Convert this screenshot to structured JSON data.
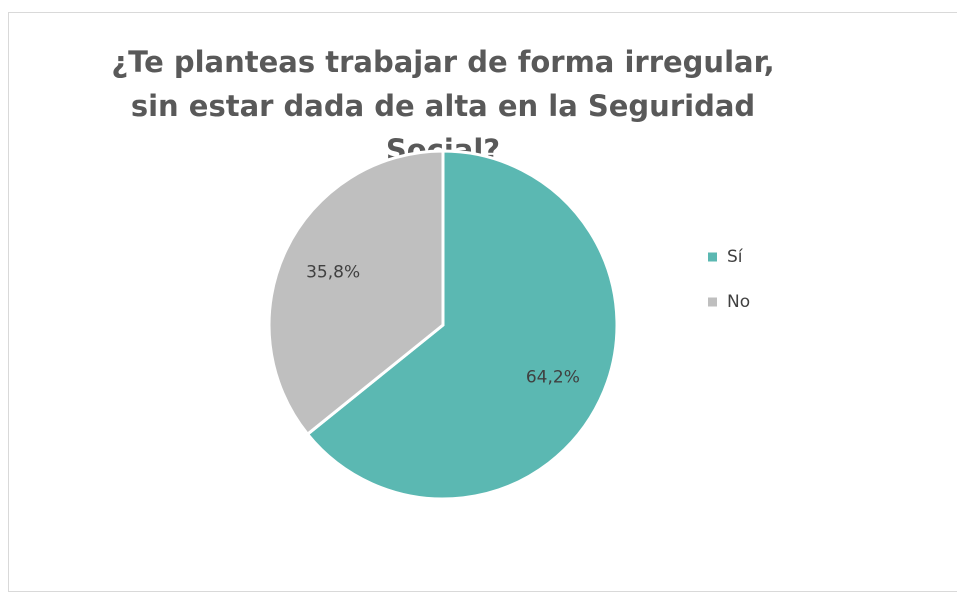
{
  "chart_data": {
    "type": "pie",
    "title": "¿Te planteas trabajar de forma irregular, sin estar dada de alta en la Seguridad Social?",
    "categories": [
      "Sí",
      "No"
    ],
    "values": [
      64.2,
      35.8
    ],
    "value_labels": [
      "64,2%",
      "35,8%"
    ],
    "colors": [
      "#5bb8b2",
      "#bfbfbf"
    ],
    "legend": "right"
  }
}
